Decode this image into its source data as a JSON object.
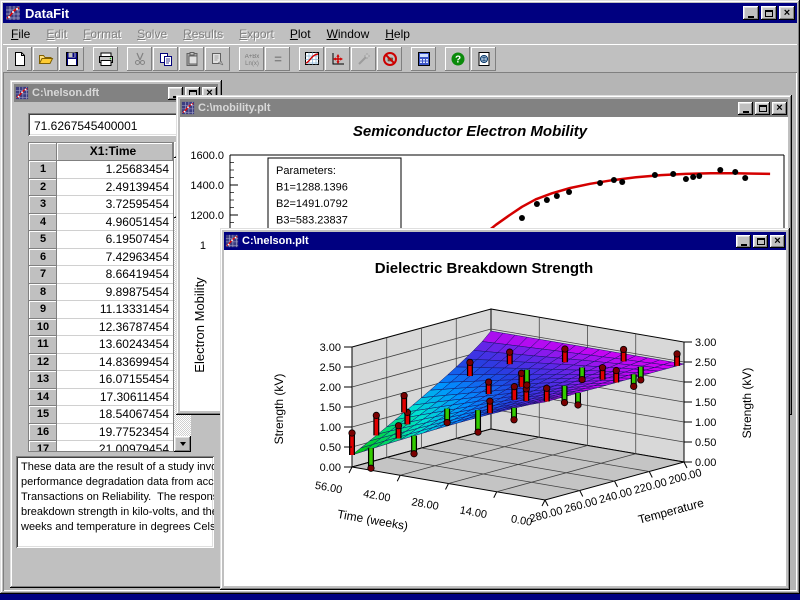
{
  "app": {
    "title": "DataFit"
  },
  "menu": {
    "items": [
      {
        "label": "File",
        "enabled": true
      },
      {
        "label": "Edit",
        "enabled": false
      },
      {
        "label": "Format",
        "enabled": false
      },
      {
        "label": "Solve",
        "enabled": false
      },
      {
        "label": "Results",
        "enabled": false
      },
      {
        "label": "Export",
        "enabled": false
      },
      {
        "label": "Plot",
        "enabled": true
      },
      {
        "label": "Window",
        "enabled": true
      },
      {
        "label": "Help",
        "enabled": true
      }
    ]
  },
  "toolbar": {
    "groups": [
      [
        "new",
        "open",
        "save"
      ],
      [
        "print"
      ],
      [
        "cut",
        "copy",
        "paste",
        "transfer"
      ],
      [
        "formula",
        "equals"
      ],
      [
        "plot-grid",
        "plot-axes",
        "pick",
        "no-plot"
      ],
      [
        "calculator"
      ],
      [
        "help",
        "web"
      ]
    ],
    "disabled": [
      "cut",
      "paste",
      "transfer",
      "formula",
      "equals",
      "pick"
    ]
  },
  "windows": {
    "nelson_dft": {
      "title": "C:\\nelson.dft",
      "cell_value": "71.6267545400001",
      "column_header": "X1:Time",
      "values": [
        "1.25683454",
        "2.49139454",
        "3.72595454",
        "4.96051454",
        "6.19507454",
        "7.42963454",
        "8.66419454",
        "9.89875454",
        "11.13331454",
        "12.36787454",
        "13.60243454",
        "14.83699454",
        "16.07155454",
        "17.30611454",
        "18.54067454",
        "19.77523454",
        "21.00979454"
      ],
      "description_lines": [
        "These data are the result of a study invo",
        "performance degradation data from acce",
        "Transactions on Reliability.  The respons",
        "breakdown strength in kilo-volts, and the",
        "weeks and temperature in degrees Celsiu"
      ]
    },
    "mobility_plt": {
      "title": "C:\\mobility.plt"
    },
    "nelson_plt": {
      "title": "C:\\nelson.plt"
    }
  },
  "chart_data": [
    {
      "type": "line",
      "title": "Semiconductor Electron Mobility",
      "ylabel": "Electron Mobility",
      "yticks": [
        "1600.0",
        "1400.0",
        "1200.0"
      ],
      "ytick_partial": "1",
      "ytick_values": [
        1600,
        1400,
        1200
      ],
      "annotation": [
        "Parameters:",
        "B1=1288.1396",
        "B2=1491.0792",
        "B3=583.23837"
      ],
      "curve_color": "#d40000",
      "point_color": "#000000",
      "curve": [
        [
          0.4,
          850
        ],
        [
          0.43,
          960
        ],
        [
          0.455,
          1060
        ],
        [
          0.48,
          1135
        ],
        [
          0.505,
          1200
        ],
        [
          0.527,
          1255
        ],
        [
          0.552,
          1305
        ],
        [
          0.581,
          1345
        ],
        [
          0.614,
          1380
        ],
        [
          0.65,
          1408
        ],
        [
          0.69,
          1432
        ],
        [
          0.733,
          1452
        ],
        [
          0.778,
          1466
        ],
        [
          0.823,
          1474
        ],
        [
          0.868,
          1478
        ],
        [
          0.91,
          1479
        ],
        [
          0.946,
          1476
        ],
        [
          0.975,
          1474
        ]
      ],
      "points": [
        [
          0.527,
          1180
        ],
        [
          0.554,
          1273
        ],
        [
          0.572,
          1300
        ],
        [
          0.59,
          1327
        ],
        [
          0.612,
          1353
        ],
        [
          0.668,
          1413
        ],
        [
          0.693,
          1433
        ],
        [
          0.708,
          1420
        ],
        [
          0.767,
          1467
        ],
        [
          0.8,
          1473
        ],
        [
          0.823,
          1440
        ],
        [
          0.836,
          1453
        ],
        [
          0.847,
          1460
        ],
        [
          0.885,
          1500
        ],
        [
          0.912,
          1487
        ],
        [
          0.93,
          1447
        ]
      ]
    },
    {
      "type": "surface",
      "title": "Dielectric Breakdown Strength",
      "axes": {
        "z": {
          "label": "Strength (kV)",
          "range": [
            0,
            3
          ],
          "labels": [
            "0.00",
            "0.50",
            "1.00",
            "1.50",
            "2.00",
            "2.50",
            "3.00"
          ]
        },
        "x": {
          "label": "Time (weeks)",
          "range": [
            0,
            56
          ],
          "labels": [
            "56.00",
            "42.00",
            "28.00",
            "14.00",
            "0.00"
          ]
        },
        "y": {
          "label": "Temperature",
          "range": [
            200,
            280
          ],
          "labels": [
            "280.00",
            "260.00",
            "240.00",
            "220.00",
            "200.00"
          ]
        }
      },
      "surface_model": {
        "plateau": 2.45,
        "drop": 2.15,
        "exp_time": 1.1,
        "exp_temp": 0.85
      },
      "colormap": [
        {
          "z": 0.3,
          "c": "#00c400"
        },
        {
          "z": 0.8,
          "c": "#00dc78"
        },
        {
          "z": 1.1,
          "c": "#00e0d0"
        },
        {
          "z": 1.5,
          "c": "#0090ff"
        },
        {
          "z": 1.9,
          "c": "#2340e0"
        },
        {
          "z": 2.15,
          "c": "#5a28e6"
        },
        {
          "z": 2.32,
          "c": "#9c14ee"
        },
        {
          "z": 2.45,
          "c": "#d400f4"
        }
      ],
      "bar_colors": {
        "above": "#e00000",
        "below": "#33cc00",
        "ball": "#7a0000"
      },
      "residual_bars": [
        {
          "t": 56,
          "T": 280,
          "dz": 0.55
        },
        {
          "t": 51,
          "T": 279,
          "dz": -0.5
        },
        {
          "t": 44,
          "T": 277,
          "dz": 0.32
        },
        {
          "t": 38,
          "T": 280,
          "dz": -0.45
        },
        {
          "t": 56,
          "T": 266,
          "dz": 0.5
        },
        {
          "t": 49,
          "T": 262,
          "dz": 0.3
        },
        {
          "t": 56,
          "T": 250,
          "dz": 0.42
        },
        {
          "t": 42,
          "T": 253,
          "dz": -0.35
        },
        {
          "t": 28,
          "T": 263,
          "dz": -0.55
        },
        {
          "t": 21,
          "T": 256,
          "dz": 0.33
        },
        {
          "t": 14,
          "T": 263,
          "dz": 0.3
        },
        {
          "t": 35,
          "T": 243,
          "dz": 0.3
        },
        {
          "t": 28,
          "T": 238,
          "dz": 0.34
        },
        {
          "t": 14,
          "T": 241,
          "dz": -0.42
        },
        {
          "t": 7,
          "T": 233,
          "dz": 0.3
        },
        {
          "t": 0,
          "T": 239,
          "dz": 0.3
        },
        {
          "t": 49,
          "T": 226,
          "dz": 0.34
        },
        {
          "t": 42,
          "T": 217,
          "dz": 0.3
        },
        {
          "t": 35,
          "T": 221,
          "dz": -0.38
        },
        {
          "t": 28,
          "T": 213,
          "dz": 0.33
        },
        {
          "t": 21,
          "T": 217,
          "dz": -0.3
        },
        {
          "t": 14,
          "T": 207,
          "dz": 0.3
        },
        {
          "t": 7,
          "T": 211,
          "dz": -0.33
        },
        {
          "t": 0,
          "T": 204,
          "dz": 0.3
        },
        {
          "t": 3,
          "T": 223,
          "dz": -0.3
        },
        {
          "t": 0,
          "T": 261,
          "dz": -0.3
        },
        {
          "t": 0,
          "T": 279,
          "dz": 0.33
        },
        {
          "t": 10,
          "T": 278,
          "dz": -0.3
        },
        {
          "t": 18,
          "T": 276,
          "dz": 0.3
        }
      ]
    }
  ]
}
